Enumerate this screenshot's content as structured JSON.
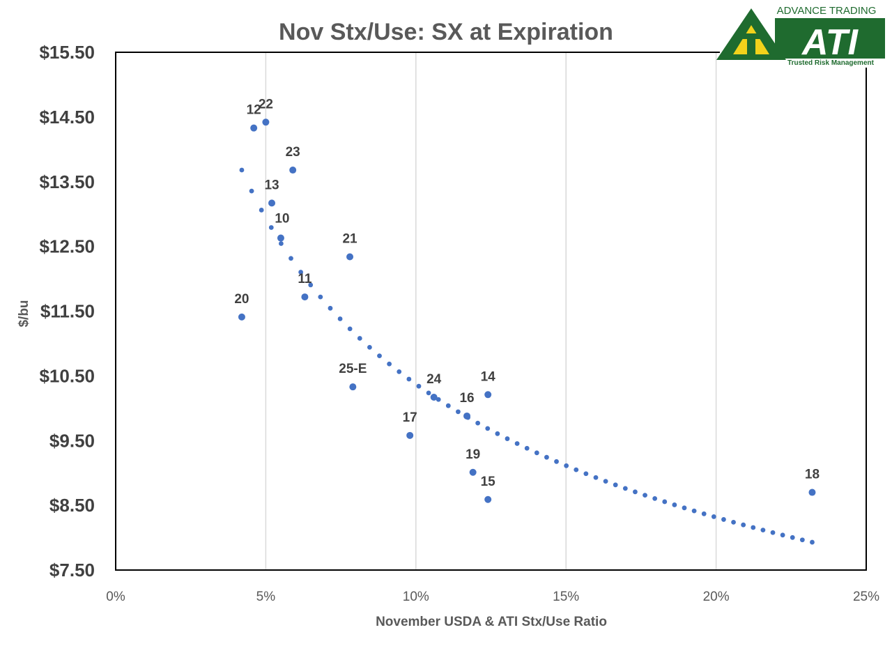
{
  "colors": {
    "point": "#4472c4",
    "trend": "#4472c4",
    "grid": "#d9d9d9",
    "highlight_label": "#ff0000",
    "logo_green": "#1f6b2f",
    "logo_yellow": "#f2d21b"
  },
  "logo": {
    "tagline_top": "ADVANCE TRADING",
    "mark": "ATI",
    "tagline_bottom": "Trusted Risk Management"
  },
  "chart_data": {
    "type": "scatter",
    "title": "Nov Stx/Use:  SX at Expiration",
    "xlabel": "November USDA & ATI Stx/Use Ratio",
    "ylabel": "$/bu",
    "xlim": [
      0,
      0.25
    ],
    "ylim": [
      7.5,
      15.5
    ],
    "x_ticks": [
      0,
      0.05,
      0.1,
      0.15,
      0.2,
      0.25
    ],
    "x_tick_labels": [
      "0%",
      "5%",
      "10%",
      "15%",
      "20%",
      "25%"
    ],
    "y_ticks": [
      7.5,
      8.5,
      9.5,
      10.5,
      11.5,
      12.5,
      13.5,
      14.5,
      15.5
    ],
    "y_tick_labels": [
      "$7.50",
      "$8.50",
      "$9.50",
      "$10.50",
      "$11.50",
      "$12.50",
      "$13.50",
      "$14.50",
      "$15.50"
    ],
    "grid": "vertical",
    "points": [
      {
        "label": "10",
        "x": 0.055,
        "y": 12.63
      },
      {
        "label": "11",
        "x": 0.063,
        "y": 11.72
      },
      {
        "label": "12",
        "x": 0.046,
        "y": 14.33
      },
      {
        "label": "13",
        "x": 0.052,
        "y": 13.17
      },
      {
        "label": "14",
        "x": 0.124,
        "y": 10.21
      },
      {
        "label": "15",
        "x": 0.124,
        "y": 8.59
      },
      {
        "label": "16",
        "x": 0.117,
        "y": 9.88
      },
      {
        "label": "17",
        "x": 0.098,
        "y": 9.58
      },
      {
        "label": "18",
        "x": 0.232,
        "y": 8.7
      },
      {
        "label": "19",
        "x": 0.119,
        "y": 9.01
      },
      {
        "label": "20",
        "x": 0.042,
        "y": 11.41
      },
      {
        "label": "21",
        "x": 0.078,
        "y": 12.34
      },
      {
        "label": "22",
        "x": 0.05,
        "y": 14.42
      },
      {
        "label": "23",
        "x": 0.059,
        "y": 13.68
      },
      {
        "label": "24",
        "x": 0.106,
        "y": 10.17
      },
      {
        "label": "25-E",
        "x": 0.079,
        "y": 10.33,
        "highlight": true
      }
    ],
    "trendline": {
      "type": "power",
      "style": "dotted",
      "x_range": [
        0.042,
        0.232
      ],
      "endpoints": [
        13.68,
        7.93
      ]
    }
  }
}
